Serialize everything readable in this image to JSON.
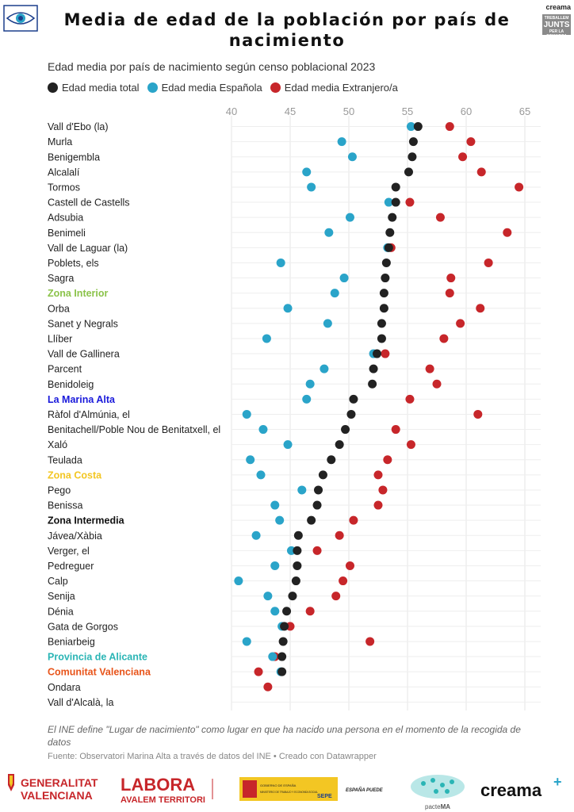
{
  "title": "Media de edad de la población por país de nacimiento",
  "header_badges": {
    "creama_small": "creama",
    "junts_top": "TREBALLEM",
    "junts_main": "JUNTS",
    "junts_bottom": "PER LA COMARCA"
  },
  "chart_data": {
    "type": "dot",
    "subtitle": "Edad media por país de nacimiento según censo poblacional 2023",
    "x_ticks": [
      40,
      45,
      50,
      55,
      60,
      65
    ],
    "xlim": [
      40,
      65
    ],
    "grid": true,
    "legend_position": "top-left",
    "series": [
      {
        "name": "Edad media total",
        "color": "#222222"
      },
      {
        "name": "Edad media Española",
        "color": "#2aa4c9"
      },
      {
        "name": "Edad media Extranjero/a",
        "color": "#c7262a"
      }
    ],
    "rows": [
      {
        "label": "Vall d'Ebo (la)",
        "total": 55.9,
        "esp": 55.3,
        "ext": 58.6
      },
      {
        "label": "Murla",
        "total": 55.5,
        "esp": 49.4,
        "ext": 60.4
      },
      {
        "label": "Benigembla",
        "total": 55.4,
        "esp": 50.3,
        "ext": 59.7
      },
      {
        "label": "Alcalalí",
        "total": 55.1,
        "esp": 46.4,
        "ext": 61.3
      },
      {
        "label": "Tormos",
        "total": 54.0,
        "esp": 46.8,
        "ext": 64.5
      },
      {
        "label": "Castell de Castells",
        "total": 54.0,
        "esp": 53.4,
        "ext": 55.2
      },
      {
        "label": "Adsubia",
        "total": 53.7,
        "esp": 50.1,
        "ext": 57.8
      },
      {
        "label": "Benimeli",
        "total": 53.5,
        "esp": 48.3,
        "ext": 63.5
      },
      {
        "label": "Vall de Laguar (la)",
        "total": 53.4,
        "esp": 53.3,
        "ext": 53.6
      },
      {
        "label": "Poblets, els",
        "total": 53.2,
        "esp": 44.2,
        "ext": 61.9
      },
      {
        "label": "Sagra",
        "total": 53.1,
        "esp": 49.6,
        "ext": 58.7
      },
      {
        "label": "Zona Interior",
        "total": 53.0,
        "esp": 48.8,
        "ext": 58.6,
        "highlight": "#8bc34a"
      },
      {
        "label": "Orba",
        "total": 53.0,
        "esp": 44.8,
        "ext": 61.2
      },
      {
        "label": "Sanet y Negrals",
        "total": 52.8,
        "esp": 48.2,
        "ext": 59.5
      },
      {
        "label": "Llíber",
        "total": 52.8,
        "esp": 43.0,
        "ext": 58.1
      },
      {
        "label": "Vall de Gallinera",
        "total": 52.4,
        "esp": 52.1,
        "ext": 53.1
      },
      {
        "label": "Parcent",
        "total": 52.1,
        "esp": 47.9,
        "ext": 56.9
      },
      {
        "label": "Benidoleig",
        "total": 52.0,
        "esp": 46.7,
        "ext": 57.5
      },
      {
        "label": "La Marina Alta",
        "total": 50.4,
        "esp": 46.4,
        "ext": 55.2,
        "highlight": "#1a1adb"
      },
      {
        "label": "Ràfol d'Almúnia, el",
        "total": 50.2,
        "esp": 41.3,
        "ext": 61.0
      },
      {
        "label": "Benitachell/Poble Nou de Benitatxell, el",
        "total": 49.7,
        "esp": 42.7,
        "ext": 54.0
      },
      {
        "label": "Xaló",
        "total": 49.2,
        "esp": 44.8,
        "ext": 55.3
      },
      {
        "label": "Teulada",
        "total": 48.5,
        "esp": 41.6,
        "ext": 53.3
      },
      {
        "label": "Zona Costa",
        "total": 47.8,
        "esp": 42.5,
        "ext": 52.5,
        "highlight": "#f3c623"
      },
      {
        "label": "Pego",
        "total": 47.4,
        "esp": 46.0,
        "ext": 52.9
      },
      {
        "label": "Benissa",
        "total": 47.3,
        "esp": 43.7,
        "ext": 52.5
      },
      {
        "label": "Zona Intermedia",
        "total": 46.8,
        "esp": 44.1,
        "ext": 50.4,
        "highlight": "#111111"
      },
      {
        "label": "Jávea/Xàbia",
        "total": 45.7,
        "esp": 42.1,
        "ext": 49.2
      },
      {
        "label": "Verger, el",
        "total": 45.6,
        "esp": 45.1,
        "ext": 47.3
      },
      {
        "label": "Pedreguer",
        "total": 45.6,
        "esp": 43.7,
        "ext": 50.1
      },
      {
        "label": "Calp",
        "total": 45.5,
        "esp": 40.6,
        "ext": 49.5
      },
      {
        "label": "Senija",
        "total": 45.2,
        "esp": 43.1,
        "ext": 48.9
      },
      {
        "label": "Dénia",
        "total": 44.7,
        "esp": 43.7,
        "ext": 46.7
      },
      {
        "label": "Gata de Gorgos",
        "total": 44.5,
        "esp": 44.3,
        "ext": 45.0
      },
      {
        "label": "Beniarbeig",
        "total": 44.4,
        "esp": 41.3,
        "ext": 51.8
      },
      {
        "label": "Provincia de Alicante",
        "total": 44.3,
        "esp": 43.5,
        "ext": 43.7,
        "highlight": "#2ab5b5"
      },
      {
        "label": "Comunitat Valenciana",
        "total": 44.3,
        "esp": 44.2,
        "ext": 42.3,
        "highlight": "#e8541a"
      },
      {
        "label": "Ondara",
        "total": null,
        "esp": null,
        "ext": 43.1
      },
      {
        "label": "Vall d'Alcalà, la",
        "total": null,
        "esp": null,
        "ext": null
      }
    ]
  },
  "note": "El INE define \"Lugar de nacimiento\" como lugar en que ha nacido una persona en el momento de la recogida de datos",
  "source": "Fuente: Observatori Marina Alta a través de datos del INE • Creado con Datawrapper",
  "footer": {
    "gva_line1": "GENERALITAT",
    "gva_line2": "VALENCIANA",
    "labora_main": "LABORA",
    "labora_sub": "AVALEM TERRITORI",
    "gob_text": "GOBIERNO DE ESPAÑA",
    "ministerio_text": "MINISTERIO DE TRABAJO Y ECONOMÍA SOCIAL",
    "sepe_text": "SEPE",
    "espana_puede": "ESPAÑA PUEDE",
    "pacte_text": "pacte",
    "pacte_ma": "MA",
    "creama_text": "creama",
    "creama_plus": "+"
  }
}
